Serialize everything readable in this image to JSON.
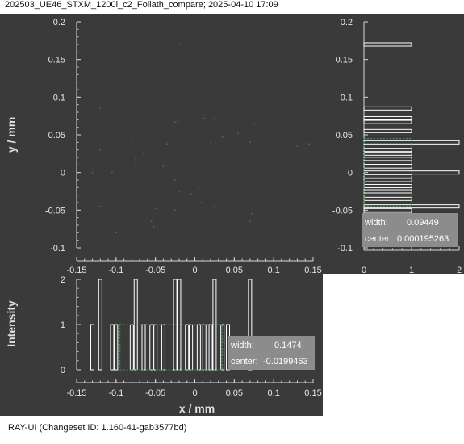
{
  "window": {
    "title": "202503_UE46_STXM_1200l_c2_Follath_compare; 2025-04-10 17:09",
    "footer": "RAY-UI (Changeset ID: 1.160-41-gab3577bd)"
  },
  "colors": {
    "background": "#3a3a3a",
    "axis": "#d8d8d8",
    "histogram": "#ffffff",
    "fit": "#3fa34d",
    "points": "#2e7d52",
    "infobox": "#8c8c8c"
  },
  "chart_data": [
    {
      "type": "scatter",
      "name": "footprint",
      "xlabel": "",
      "ylabel": "y / mm",
      "xlim": [
        -0.15,
        0.15
      ],
      "ylim": [
        -0.1,
        0.2
      ],
      "xticks": [
        "-0.15",
        "-0.1",
        "-0.05",
        "0",
        "0.05",
        "0.1",
        "0.15"
      ],
      "yticks": [
        "0.2",
        "0.15",
        "0.1",
        "0.05",
        "0",
        "-0.05",
        "-0.1"
      ],
      "points": [
        [
          -0.02,
          0.17
        ],
        [
          -0.12,
          0.085
        ],
        [
          -0.025,
          0.067
        ],
        [
          -0.022,
          0.067
        ],
        [
          0.012,
          0.072
        ],
        [
          0.025,
          0.072
        ],
        [
          0.042,
          0.07
        ],
        [
          -0.08,
          0.045
        ],
        [
          0.055,
          0.052
        ],
        [
          0.035,
          0.047
        ],
        [
          -0.12,
          0.03
        ],
        [
          -0.075,
          0.018
        ],
        [
          -0.075,
          0.013
        ],
        [
          -0.04,
          0.008
        ],
        [
          0.02,
          0.04
        ],
        [
          -0.035,
          0.038
        ],
        [
          -0.065,
          0.025
        ],
        [
          -0.105,
          0.0
        ],
        [
          -0.13,
          0.0
        ],
        [
          -0.025,
          -0.01
        ],
        [
          -0.01,
          -0.018
        ],
        [
          -0.02,
          -0.025
        ],
        [
          0.005,
          -0.02
        ],
        [
          -0.005,
          -0.028
        ],
        [
          -0.02,
          -0.035
        ],
        [
          0.008,
          -0.04
        ],
        [
          -0.05,
          -0.048
        ],
        [
          -0.025,
          -0.05
        ],
        [
          -0.12,
          -0.045
        ],
        [
          0.025,
          -0.045
        ],
        [
          -0.055,
          -0.065
        ],
        [
          -0.052,
          -0.072
        ],
        [
          0.072,
          -0.055
        ],
        [
          0.07,
          -0.065
        ],
        [
          -0.1,
          -0.08
        ],
        [
          0.13,
          0.035
        ],
        [
          0.145,
          0.038
        ],
        [
          0.105,
          -0.1
        ],
        [
          0.075,
          0.065
        ],
        [
          0.07,
          0.04
        ]
      ]
    },
    {
      "type": "bar",
      "name": "y-histogram",
      "orientation": "horizontal",
      "xlim": [
        0,
        2
      ],
      "xticks": [
        "0",
        "1",
        "2"
      ],
      "bins_y": [
        0.17,
        0.085,
        0.072,
        0.067,
        0.055,
        0.04,
        0.03,
        0.025,
        0.018,
        0.013,
        0.008,
        0.0,
        -0.005,
        -0.01,
        -0.018,
        -0.025,
        -0.035,
        -0.045,
        -0.05,
        -0.055,
        -0.065,
        -0.08
      ],
      "counts": [
        1,
        1,
        1,
        1,
        1,
        2,
        1,
        1,
        1,
        1,
        1,
        2,
        1,
        1,
        1,
        1,
        1,
        2,
        1,
        1,
        1,
        1
      ],
      "fit_value": 1,
      "fit_range": [
        -0.045,
        0.045
      ],
      "info": {
        "width_label": "width:",
        "width_value": "0.09449",
        "center_label": "center:",
        "center_value": "0.000195263"
      }
    },
    {
      "type": "bar",
      "name": "x-histogram",
      "xlabel": "x / mm",
      "ylabel": "Intensity",
      "xlim": [
        -0.15,
        0.15
      ],
      "ylim": [
        0,
        2
      ],
      "xticks": [
        "-0.15",
        "-0.1",
        "-0.05",
        "0",
        "0.05",
        "0.1",
        "0.15"
      ],
      "yticks": [
        "2",
        "1",
        "0"
      ],
      "bins_x": [
        -0.13,
        -0.12,
        -0.105,
        -0.1,
        -0.08,
        -0.075,
        -0.065,
        -0.055,
        -0.05,
        -0.04,
        -0.025,
        -0.02,
        -0.01,
        -0.005,
        0.005,
        0.012,
        0.02,
        0.025,
        0.035,
        0.042,
        0.07
      ],
      "counts": [
        1,
        2,
        1,
        1,
        1,
        2,
        1,
        1,
        1,
        1,
        2,
        2,
        1,
        1,
        1,
        1,
        1,
        2,
        1,
        1,
        2
      ],
      "fit_value": 1,
      "fit_range": [
        -0.095,
        0.035
      ],
      "info": {
        "width_label": "width:",
        "width_value": "0.1474",
        "center_label": "center:",
        "center_value": "-0.0199463"
      }
    }
  ]
}
